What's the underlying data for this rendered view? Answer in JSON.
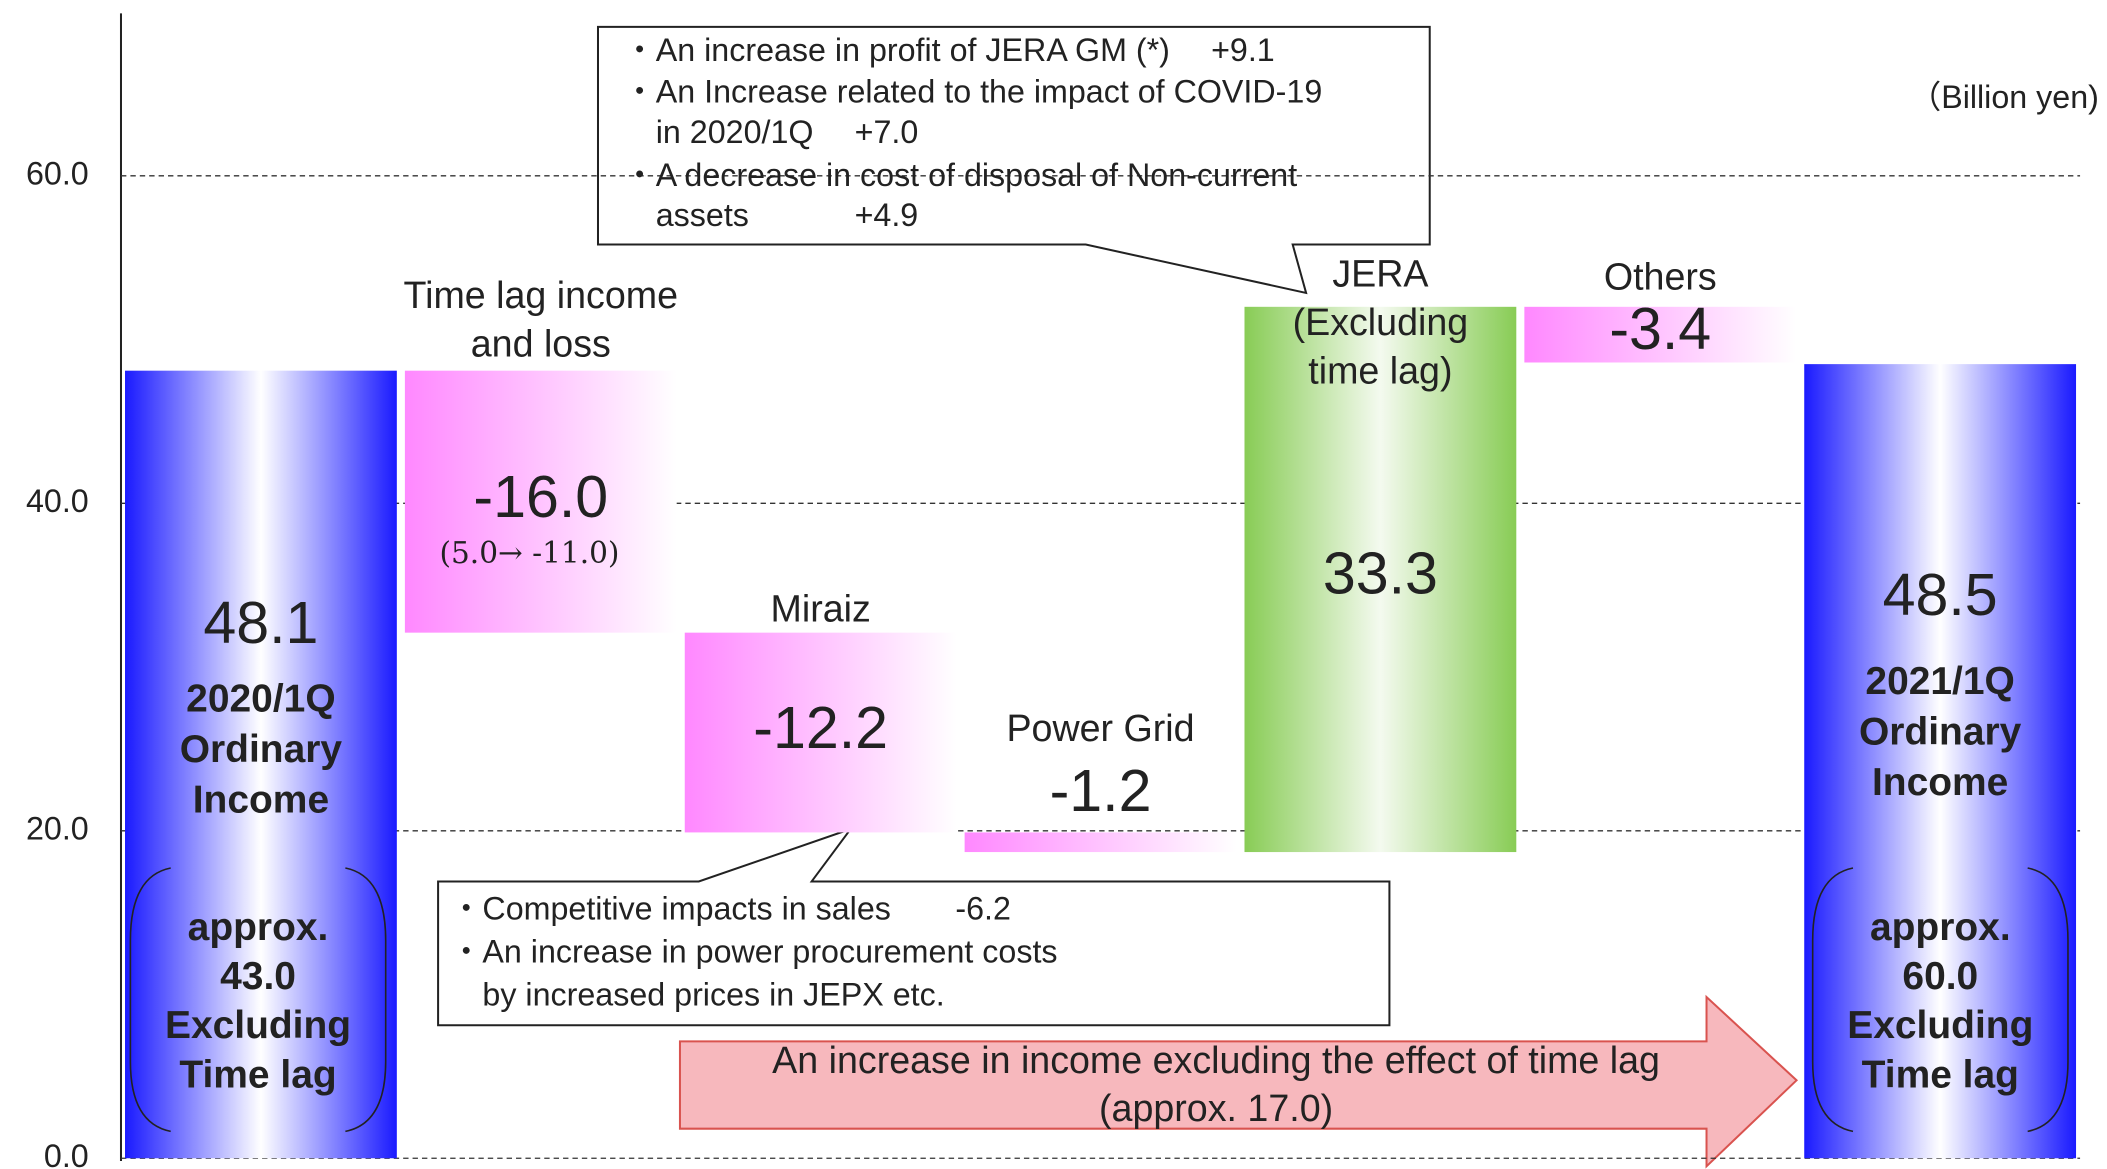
{
  "chart_data": {
    "type": "waterfall",
    "unit": "（Billion yen)",
    "categories": [
      [
        "2020/1Q",
        "Ordinary",
        "Income"
      ],
      [
        "Time lag income",
        "and loss"
      ],
      [
        "Miraiz"
      ],
      [
        "Power Grid"
      ],
      [
        "JERA",
        "(Excluding",
        "time lag)"
      ],
      [
        "Others"
      ],
      [
        "2021/1Q",
        "Ordinary",
        "Income"
      ]
    ],
    "kinds": [
      "total",
      "delta",
      "delta",
      "delta",
      "delta",
      "delta",
      "total"
    ],
    "values": [
      48.1,
      -16.0,
      -12.2,
      -1.2,
      33.3,
      -3.4,
      48.5
    ],
    "value_labels": [
      "48.1",
      "-16.0",
      "-12.2",
      "-1.2",
      "33.3",
      "-3.4",
      "48.5"
    ],
    "colors": {
      "total": "#1a1aff",
      "decrease": "#ff88ff",
      "increase": "#88cc55"
    },
    "ylim": [
      0,
      70
    ],
    "yticks": [
      {
        "value": 0,
        "label": "0.0"
      },
      {
        "value": 20,
        "label": "20.0"
      },
      {
        "value": 40,
        "label": "40.0"
      },
      {
        "value": 60,
        "label": "60.0"
      }
    ],
    "grid": true,
    "annotations": {
      "time_lag_detail": "(5.0→ -11.0)",
      "start_note": [
        "approx.",
        "43.0",
        "Excluding",
        "Time lag"
      ],
      "end_note": [
        "approx.",
        "60.0",
        "Excluding",
        "Time lag"
      ],
      "jera_callout": [
        "・An increase in profit of JERA GM (*)　 +9.1",
        "・An Increase related to the impact of COVID-19",
        "　in 2020/1Q　 +7.0",
        "・A decrease in cost of disposal of Non-current",
        "　assets　　　 +4.9"
      ],
      "miraiz_callout": [
        "・Competitive impacts in sales　　-6.2",
        "・An increase in power procurement costs",
        "　by increased prices in JEPX etc."
      ],
      "arrow_text": [
        "An increase in income excluding the effect of time lag",
        "(approx. 17.0)"
      ]
    }
  }
}
